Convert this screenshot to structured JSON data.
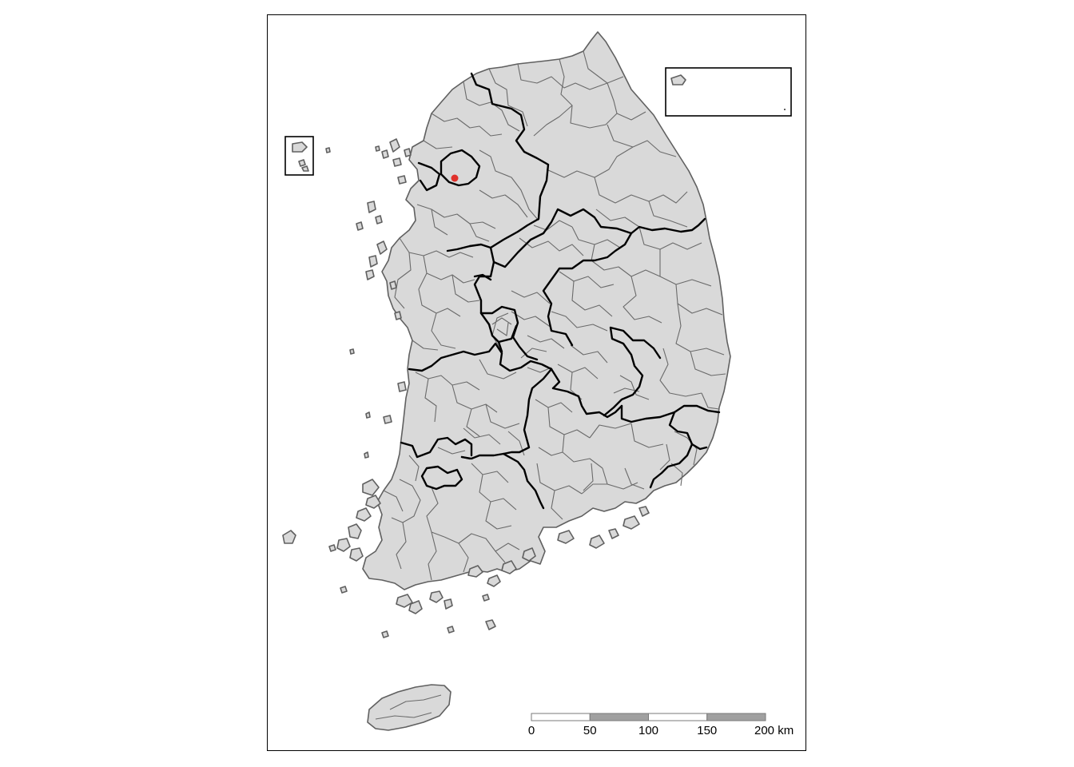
{
  "map": {
    "highlight_color": "#e0312b",
    "land_color": "#d9d9d9",
    "province_border_color": "#000000",
    "municipal_border_color": "#666666"
  },
  "scale_bar": {
    "labels": [
      "0",
      "50",
      "100",
      "150",
      "200 km"
    ],
    "fill_colors": [
      "#ffffff",
      "#a0a0a0",
      "#ffffff",
      "#a0a0a0"
    ]
  }
}
